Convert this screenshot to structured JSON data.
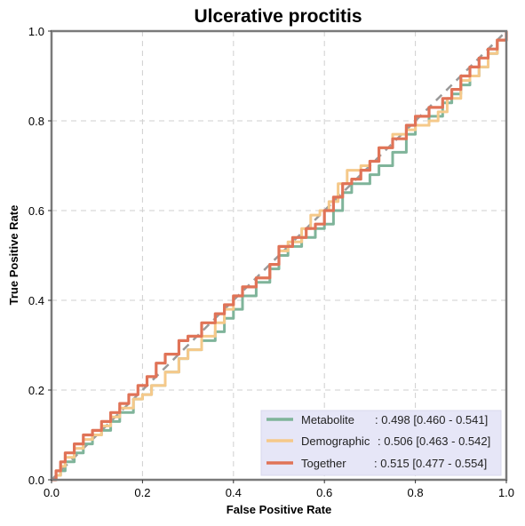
{
  "chart_data": {
    "type": "line",
    "title": "Ulcerative proctitis",
    "xlabel": "False Positive Rate",
    "ylabel": "True Positive Rate",
    "xlim": [
      0,
      1
    ],
    "ylim": [
      0,
      1
    ],
    "x_ticks": [
      "0.0",
      "0.2",
      "0.4",
      "0.6",
      "0.8",
      "1.0"
    ],
    "y_ticks": [
      "0.0",
      "0.2",
      "0.4",
      "0.6",
      "0.8",
      "1.0"
    ],
    "grid": true,
    "legend_position": "bottom-right",
    "reference_line": {
      "x": [
        0,
        1
      ],
      "y": [
        0,
        1
      ],
      "style": "dashed",
      "color": "#9a9a9a"
    },
    "series": [
      {
        "name": "Metabolite",
        "label": ": 0.498 [0.460 - 0.541]",
        "color": "#7fb49a",
        "x": [
          0,
          0.01,
          0.02,
          0.03,
          0.05,
          0.07,
          0.09,
          0.11,
          0.13,
          0.15,
          0.18,
          0.2,
          0.22,
          0.25,
          0.28,
          0.3,
          0.33,
          0.36,
          0.38,
          0.4,
          0.42,
          0.45,
          0.48,
          0.5,
          0.52,
          0.55,
          0.58,
          0.6,
          0.62,
          0.64,
          0.66,
          0.68,
          0.7,
          0.72,
          0.75,
          0.78,
          0.8,
          0.83,
          0.86,
          0.88,
          0.9,
          0.92,
          0.94,
          0.96,
          0.98,
          1.0
        ],
        "y": [
          0,
          0.01,
          0.02,
          0.04,
          0.06,
          0.08,
          0.1,
          0.11,
          0.13,
          0.15,
          0.18,
          0.19,
          0.21,
          0.24,
          0.27,
          0.29,
          0.31,
          0.33,
          0.36,
          0.38,
          0.41,
          0.44,
          0.47,
          0.5,
          0.52,
          0.54,
          0.56,
          0.57,
          0.6,
          0.64,
          0.66,
          0.66,
          0.68,
          0.7,
          0.73,
          0.77,
          0.79,
          0.81,
          0.84,
          0.86,
          0.88,
          0.9,
          0.92,
          0.95,
          0.98,
          1.0
        ]
      },
      {
        "name": "Demographic",
        "label": ": 0.506 [0.463 - 0.542]",
        "color": "#f5c98a",
        "x": [
          0,
          0.01,
          0.02,
          0.03,
          0.05,
          0.07,
          0.09,
          0.11,
          0.13,
          0.15,
          0.18,
          0.2,
          0.22,
          0.25,
          0.28,
          0.3,
          0.33,
          0.36,
          0.38,
          0.4,
          0.42,
          0.45,
          0.48,
          0.5,
          0.52,
          0.55,
          0.57,
          0.59,
          0.61,
          0.63,
          0.65,
          0.68,
          0.7,
          0.72,
          0.75,
          0.78,
          0.8,
          0.83,
          0.85,
          0.87,
          0.9,
          0.92,
          0.94,
          0.96,
          0.98,
          1.0
        ],
        "y": [
          0,
          0.01,
          0.03,
          0.05,
          0.07,
          0.09,
          0.1,
          0.12,
          0.14,
          0.16,
          0.18,
          0.19,
          0.21,
          0.24,
          0.27,
          0.29,
          0.32,
          0.35,
          0.38,
          0.41,
          0.43,
          0.45,
          0.48,
          0.51,
          0.53,
          0.56,
          0.59,
          0.6,
          0.62,
          0.66,
          0.69,
          0.7,
          0.71,
          0.74,
          0.77,
          0.78,
          0.79,
          0.8,
          0.82,
          0.85,
          0.89,
          0.9,
          0.92,
          0.95,
          0.98,
          1.0
        ]
      },
      {
        "name": "Together",
        "label": ": 0.515 [0.477 - 0.554]",
        "color": "#e07357",
        "x": [
          0,
          0.01,
          0.02,
          0.03,
          0.05,
          0.07,
          0.09,
          0.11,
          0.13,
          0.15,
          0.17,
          0.19,
          0.21,
          0.23,
          0.25,
          0.28,
          0.3,
          0.33,
          0.36,
          0.38,
          0.4,
          0.42,
          0.45,
          0.48,
          0.5,
          0.53,
          0.56,
          0.58,
          0.6,
          0.62,
          0.64,
          0.66,
          0.68,
          0.7,
          0.72,
          0.75,
          0.78,
          0.8,
          0.83,
          0.86,
          0.88,
          0.9,
          0.92,
          0.94,
          0.96,
          0.98,
          1.0
        ],
        "y": [
          0,
          0.02,
          0.04,
          0.06,
          0.08,
          0.1,
          0.11,
          0.13,
          0.15,
          0.17,
          0.19,
          0.21,
          0.23,
          0.26,
          0.28,
          0.31,
          0.32,
          0.35,
          0.37,
          0.39,
          0.41,
          0.43,
          0.45,
          0.48,
          0.52,
          0.54,
          0.56,
          0.57,
          0.6,
          0.63,
          0.66,
          0.67,
          0.69,
          0.71,
          0.74,
          0.76,
          0.79,
          0.81,
          0.83,
          0.85,
          0.87,
          0.9,
          0.92,
          0.94,
          0.96,
          0.98,
          1.0
        ]
      }
    ]
  }
}
